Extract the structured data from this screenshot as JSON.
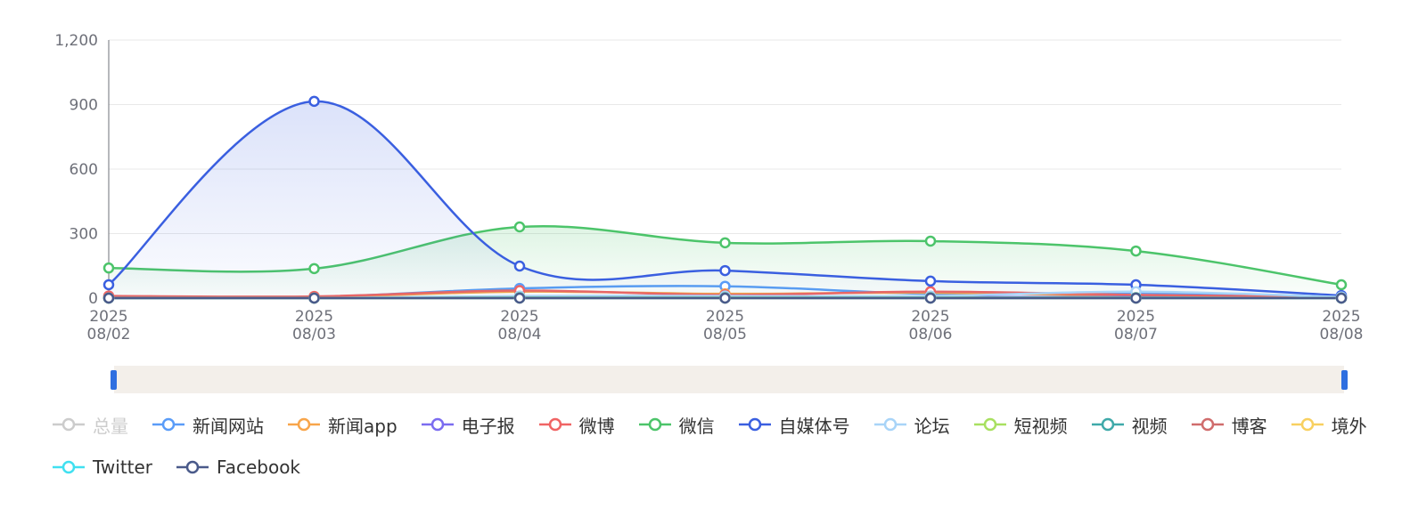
{
  "chart_data": {
    "type": "line",
    "smooth": true,
    "categories": [
      "2025\n08/02",
      "2025\n08/03",
      "2025\n08/04",
      "2025\n08/05",
      "2025\n08/06",
      "2025\n08/07",
      "2025\n08/08"
    ],
    "ylim": [
      0,
      1200
    ],
    "yticks": [
      0,
      300,
      600,
      900,
      {
        "value": 1200,
        "label": "1,200"
      }
    ],
    "grid": true,
    "series": [
      {
        "name": "总量",
        "color": "#cccccc",
        "selected": false,
        "values": [
          null,
          null,
          null,
          null,
          null,
          null,
          null
        ]
      },
      {
        "name": "新闻网站",
        "color": "#5a9cf8",
        "values": [
          0,
          5,
          45,
          55,
          20,
          25,
          5
        ]
      },
      {
        "name": "新闻app",
        "color": "#f8a54a",
        "values": [
          5,
          5,
          30,
          20,
          25,
          10,
          2
        ]
      },
      {
        "name": "电子报",
        "color": "#7b6cf0",
        "values": [
          0,
          0,
          5,
          5,
          5,
          5,
          0
        ]
      },
      {
        "name": "微博",
        "color": "#f06464",
        "values": [
          10,
          8,
          35,
          15,
          30,
          15,
          5
        ]
      },
      {
        "name": "微信",
        "color": "#4cc46a",
        "area": true,
        "values": [
          140,
          137,
          331,
          257,
          265,
          219,
          62
        ]
      },
      {
        "name": "自媒体号",
        "color": "#3a5fe0",
        "area": true,
        "values": [
          62,
          915,
          149,
          128,
          79,
          62,
          12
        ]
      },
      {
        "name": "论坛",
        "color": "#a8d4f8",
        "values": [
          0,
          0,
          10,
          10,
          10,
          30,
          5
        ]
      },
      {
        "name": "短视频",
        "color": "#a8e060",
        "values": [
          0,
          0,
          2,
          2,
          2,
          2,
          0
        ]
      },
      {
        "name": "视频",
        "color": "#3fa9a9",
        "values": [
          0,
          0,
          2,
          2,
          2,
          2,
          0
        ]
      },
      {
        "name": "博客",
        "color": "#d06c6c",
        "values": [
          0,
          0,
          0,
          0,
          0,
          0,
          0
        ]
      },
      {
        "name": "境外",
        "color": "#f8d060",
        "values": [
          0,
          0,
          0,
          0,
          0,
          0,
          0
        ]
      },
      {
        "name": "Twitter",
        "color": "#40e0f0",
        "values": [
          0,
          0,
          0,
          0,
          0,
          0,
          0
        ]
      },
      {
        "name": "Facebook",
        "color": "#4a5a8a",
        "values": [
          0,
          0,
          0,
          0,
          0,
          0,
          0
        ]
      }
    ]
  }
}
